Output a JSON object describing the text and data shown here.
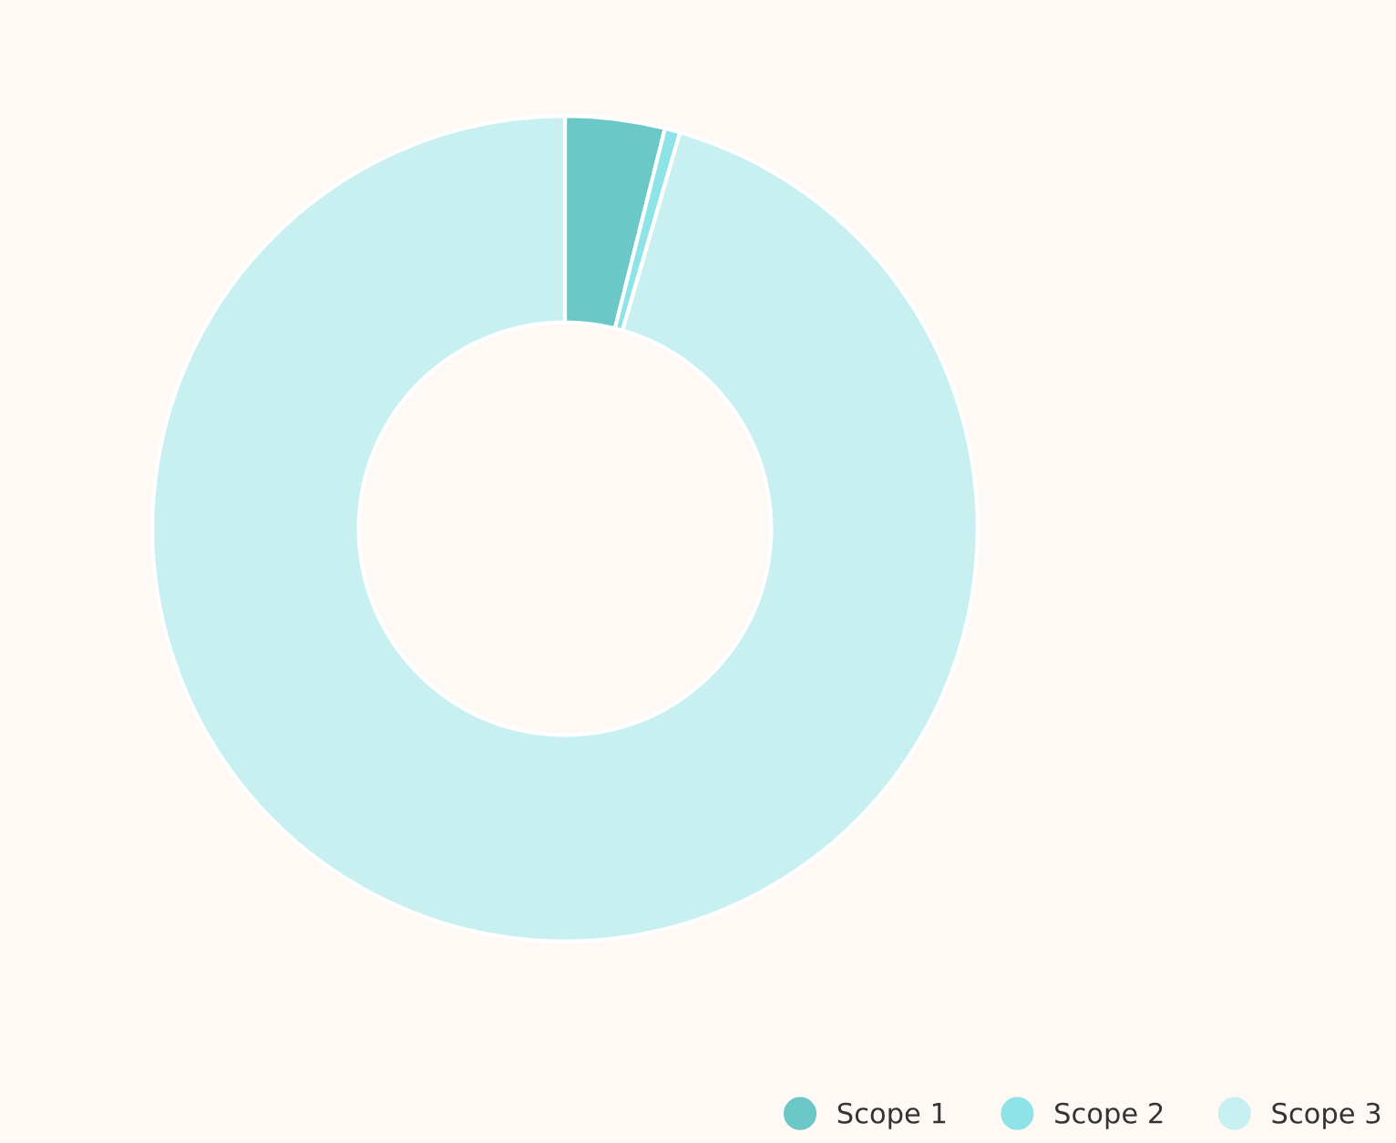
{
  "chart_data": {
    "type": "donut",
    "categories": [
      "Scope 1",
      "Scope 2",
      "Scope 3"
    ],
    "values": [
      3.9,
      0.6,
      95.5
    ],
    "colors": [
      "#6cc7c7",
      "#8ee3e6",
      "#c9f0f1"
    ],
    "legend": "bottom right"
  }
}
